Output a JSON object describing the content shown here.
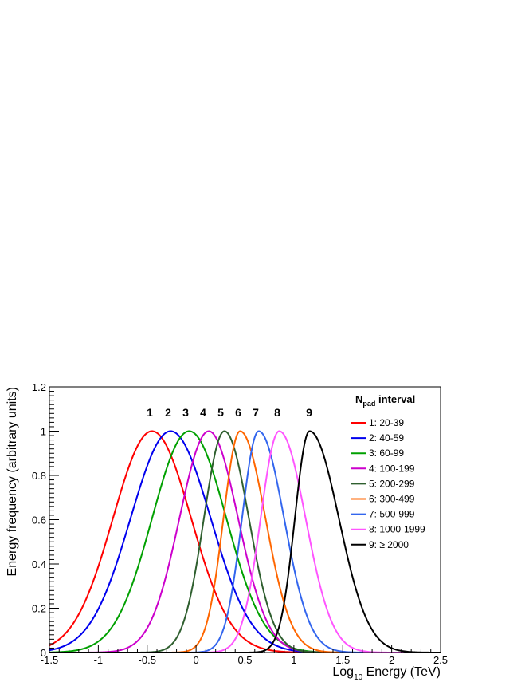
{
  "chart_data": {
    "type": "line",
    "title": "",
    "xlabel": {
      "prefix": "Log",
      "subscript": "10",
      "suffix": " Energy (TeV)"
    },
    "ylabel": "Energy frequency (arbitrary units)",
    "xlim": [
      -1.5,
      2.5
    ],
    "ylim": [
      0,
      1.2
    ],
    "x_ticks": [
      -1.5,
      -1,
      -0.5,
      0,
      0.5,
      1,
      1.5,
      2,
      2.5
    ],
    "x_tick_labels": [
      "-1.5",
      "-1",
      "-0.5",
      "0",
      "0.5",
      "1",
      "1.5",
      "2",
      "2.5"
    ],
    "y_ticks": [
      0,
      0.2,
      0.4,
      0.6,
      0.8,
      1,
      1.2
    ],
    "y_tick_labels": [
      "0",
      "0.2",
      "0.4",
      "0.6",
      "0.8",
      "1",
      "1.2"
    ],
    "grid": false,
    "legend_placement": "top-right",
    "legend_title": {
      "main": "N",
      "subscript": "pad",
      "suffix": " interval"
    },
    "series": [
      {
        "name": "1:  20-39",
        "peak_label": "1",
        "color": "#ff0000",
        "peak_x": -0.45,
        "sigma_left": 0.4,
        "sigma_right": 0.4
      },
      {
        "name": "2:  40-59",
        "peak_label": "2",
        "color": "#0000ee",
        "peak_x": -0.26,
        "sigma_left": 0.41,
        "sigma_right": 0.41
      },
      {
        "name": "3:  60-99",
        "peak_label": "3",
        "color": "#00a000",
        "peak_x": -0.07,
        "sigma_left": 0.38,
        "sigma_right": 0.38
      },
      {
        "name": "4:  100-199",
        "peak_label": "4",
        "color": "#cc00cc",
        "peak_x": 0.13,
        "sigma_left": 0.3,
        "sigma_right": 0.3
      },
      {
        "name": "5:  200-299",
        "peak_label": "5",
        "color": "#2f5f2f",
        "peak_x": 0.29,
        "sigma_left": 0.21,
        "sigma_right": 0.25
      },
      {
        "name": "6:  300-499",
        "peak_label": "6",
        "color": "#ff6600",
        "peak_x": 0.45,
        "sigma_left": 0.17,
        "sigma_right": 0.26
      },
      {
        "name": "7:  500-999",
        "peak_label": "7",
        "color": "#3366ee",
        "peak_x": 0.64,
        "sigma_left": 0.17,
        "sigma_right": 0.26
      },
      {
        "name": "8:  1000-1999",
        "peak_label": "8",
        "color": "#ff55ff",
        "peak_x": 0.85,
        "sigma_left": 0.19,
        "sigma_right": 0.27
      },
      {
        "name": "9:  ≥ 2000",
        "peak_label": "9",
        "color": "#000000",
        "peak_x": 1.16,
        "sigma_left": 0.15,
        "sigma_right": 0.3
      }
    ]
  }
}
